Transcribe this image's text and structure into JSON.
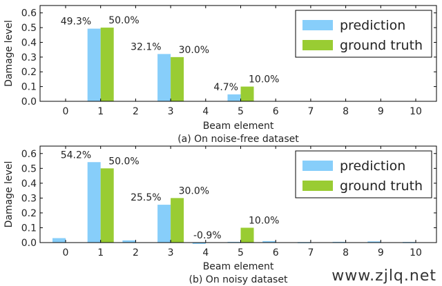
{
  "chart_data": [
    {
      "type": "bar",
      "caption": "(a) On noise-free dataset",
      "xlabel": "Beam element",
      "ylabel": "Damage level",
      "categories": [
        "0",
        "1",
        "2",
        "3",
        "4",
        "5",
        "6",
        "7",
        "8",
        "9",
        "10"
      ],
      "yticks": [
        "0.0",
        "0.1",
        "0.2",
        "0.3",
        "0.4",
        "0.5",
        "0.6"
      ],
      "ylim": [
        0,
        0.65
      ],
      "legend_position": "top-right",
      "series": [
        {
          "name": "prediction",
          "color": "#87cefa",
          "values": [
            0,
            0.493,
            0,
            0.321,
            0,
            0.047,
            0,
            0,
            0,
            0,
            0
          ]
        },
        {
          "name": "ground truth",
          "color": "#99cc33",
          "values": [
            0,
            0.5,
            0,
            0.3,
            0,
            0.1,
            0,
            0,
            0,
            0,
            0
          ]
        }
      ],
      "annotations": [
        {
          "text": "49.3%",
          "category": "1",
          "series": 0
        },
        {
          "text": "50.0%",
          "category": "1",
          "series": 1
        },
        {
          "text": "32.1%",
          "category": "3",
          "series": 0
        },
        {
          "text": "30.0%",
          "category": "3",
          "series": 1
        },
        {
          "text": "4.7%",
          "category": "5",
          "series": 0
        },
        {
          "text": "10.0%",
          "category": "5",
          "series": 1
        }
      ]
    },
    {
      "type": "bar",
      "caption": "(b) On noisy dataset",
      "xlabel": "Beam element",
      "ylabel": "Damage level",
      "categories": [
        "0",
        "1",
        "2",
        "3",
        "4",
        "5",
        "6",
        "7",
        "8",
        "9",
        "10"
      ],
      "yticks": [
        "0.0",
        "0.1",
        "0.2",
        "0.3",
        "0.4",
        "0.5",
        "0.6"
      ],
      "ylim": [
        0,
        0.65
      ],
      "legend_position": "top-right",
      "series": [
        {
          "name": "prediction",
          "color": "#87cefa",
          "values": [
            0.03,
            0.542,
            0.015,
            0.255,
            -0.009,
            0.005,
            0.01,
            0.003,
            0.005,
            0.008,
            0.004
          ]
        },
        {
          "name": "ground truth",
          "color": "#99cc33",
          "values": [
            0,
            0.5,
            0,
            0.3,
            0,
            0.1,
            0,
            0,
            0,
            0,
            0
          ]
        }
      ],
      "annotations": [
        {
          "text": "54.2%",
          "category": "1",
          "series": 0
        },
        {
          "text": "50.0%",
          "category": "1",
          "series": 1
        },
        {
          "text": "25.5%",
          "category": "3",
          "series": 0
        },
        {
          "text": "30.0%",
          "category": "3",
          "series": 1
        },
        {
          "text": "-0.9%",
          "category": "4",
          "series": 0
        },
        {
          "text": "10.0%",
          "category": "5",
          "series": 1
        }
      ]
    }
  ],
  "watermark": "www.zjlq.net"
}
